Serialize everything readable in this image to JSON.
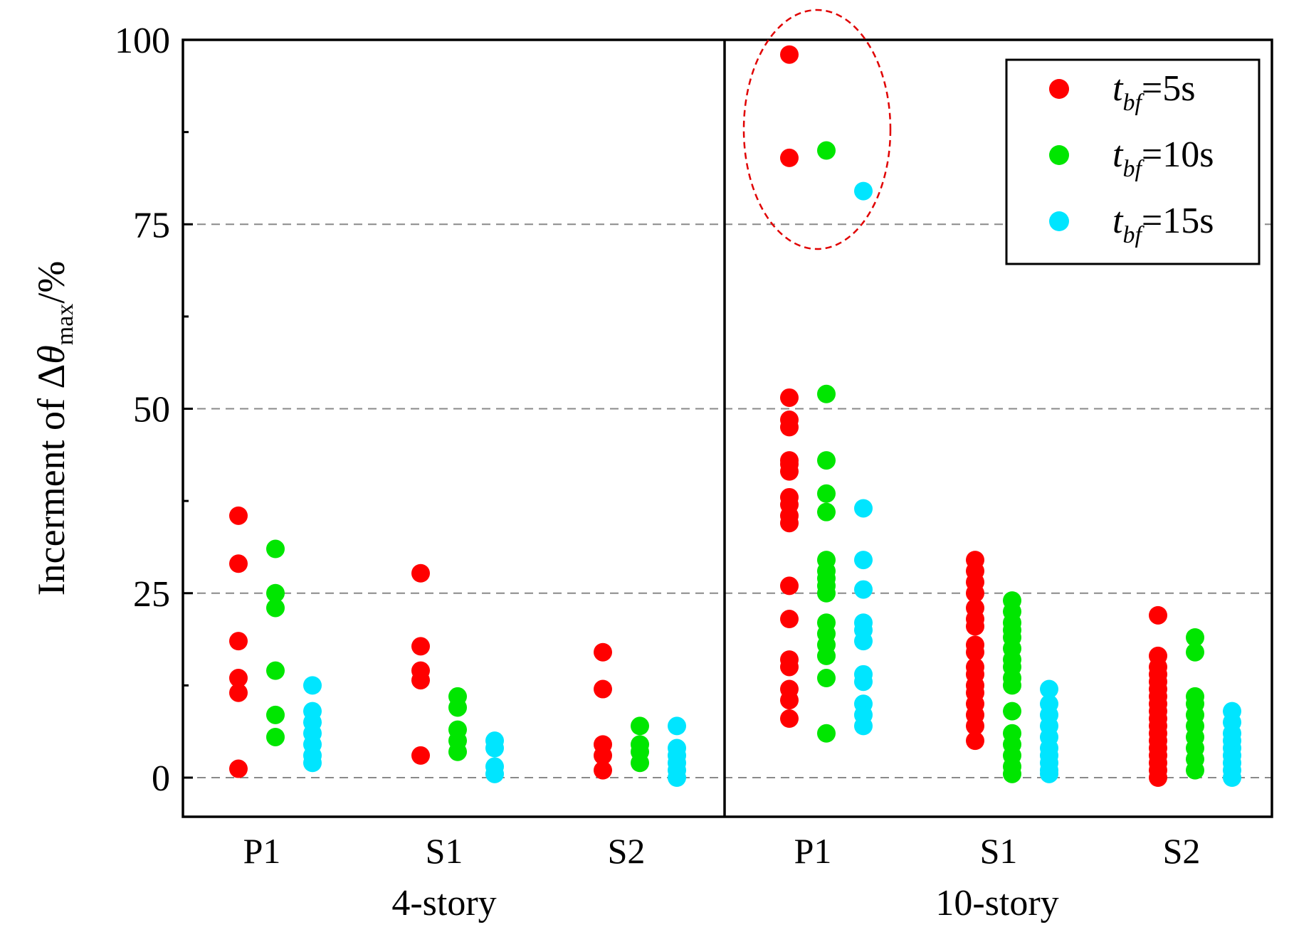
{
  "chart_data": {
    "type": "scatter",
    "ylabel": {
      "prefix": "Incerment of Δ",
      "theta": "θ",
      "sub": "max",
      "suffix": "/%"
    },
    "ylim": [
      -5,
      105
    ],
    "yticks": [
      0,
      25,
      50,
      75,
      100
    ],
    "ytick_labels": [
      "0",
      "25",
      "50",
      "75",
      "100"
    ],
    "grid_dashed_at": [
      0,
      25,
      50,
      75
    ],
    "categories": [
      "P1",
      "S1",
      "S2",
      "P1",
      "S1",
      "S2"
    ],
    "groups": [
      {
        "name": "4-story",
        "categories": [
          0,
          1,
          2
        ]
      },
      {
        "name": "10-story",
        "categories": [
          3,
          4,
          5
        ]
      }
    ],
    "legend": [
      {
        "var": "t",
        "sub": "bf",
        "rest": "=5s",
        "color": "#ff0000"
      },
      {
        "var": "t",
        "sub": "bf",
        "rest": "=10s",
        "color": "#00e600"
      },
      {
        "var": "t",
        "sub": "bf",
        "rest": "=15s",
        "color": "#00e5ff"
      }
    ],
    "series": [
      {
        "name": "tbf=5s",
        "color": "#ff0000",
        "values": [
          [
            35.5,
            29,
            18.5,
            13.5,
            11.5,
            1.2
          ],
          [
            27.7,
            17.8,
            14.5,
            13.2,
            3
          ],
          [
            17,
            12,
            4.5,
            3,
            1
          ],
          [
            98,
            84,
            51.5,
            48.5,
            47.5,
            43,
            42.5,
            41.5,
            38,
            37,
            35.5,
            34.5,
            26,
            21.5,
            16,
            15,
            12,
            10.5,
            8
          ],
          [
            29.5,
            28,
            26.5,
            25,
            23,
            21.5,
            20.5,
            18,
            17,
            15,
            14,
            12.5,
            11.5,
            10,
            8.5,
            7,
            5
          ],
          [
            22,
            16.5,
            15,
            14,
            13,
            12,
            11,
            10,
            9,
            8,
            7,
            6,
            5,
            4,
            3,
            2,
            1,
            0
          ]
        ]
      },
      {
        "name": "tbf=10s",
        "color": "#00e600",
        "values": [
          [
            31,
            25,
            23,
            14.5,
            8.5,
            5.5
          ],
          [
            11,
            9.5,
            6.5,
            5,
            3.5
          ],
          [
            7,
            4.5,
            3.5,
            2
          ],
          [
            85,
            52,
            43,
            38.5,
            36,
            29.5,
            28,
            27,
            26,
            25,
            21,
            19.5,
            18,
            16.5,
            13.5,
            6
          ],
          [
            24,
            22.5,
            21,
            20,
            19,
            17.5,
            16,
            15,
            13.5,
            12.5,
            9,
            6,
            4.5,
            3,
            1.5,
            0.5
          ],
          [
            19,
            17,
            11,
            10,
            8.5,
            7,
            5.5,
            4,
            2.5,
            1
          ]
        ]
      },
      {
        "name": "tbf=15s",
        "color": "#00e5ff",
        "values": [
          [
            12.5,
            9,
            7.5,
            6,
            4.5,
            3,
            2
          ],
          [
            5,
            4,
            1.5,
            0.5
          ],
          [
            7,
            4,
            3,
            2,
            1,
            0
          ],
          [
            79.5,
            36.5,
            29.5,
            25.5,
            21,
            20,
            18.5,
            14,
            13,
            10,
            8.5,
            7
          ],
          [
            12,
            10,
            8.5,
            7,
            5.5,
            4,
            3,
            2,
            1,
            0.5
          ],
          [
            9,
            7.5,
            6,
            5,
            4,
            3,
            2,
            1,
            0
          ]
        ]
      }
    ],
    "annotation": "dashed red ellipse around the highest 10-story P1 points"
  }
}
